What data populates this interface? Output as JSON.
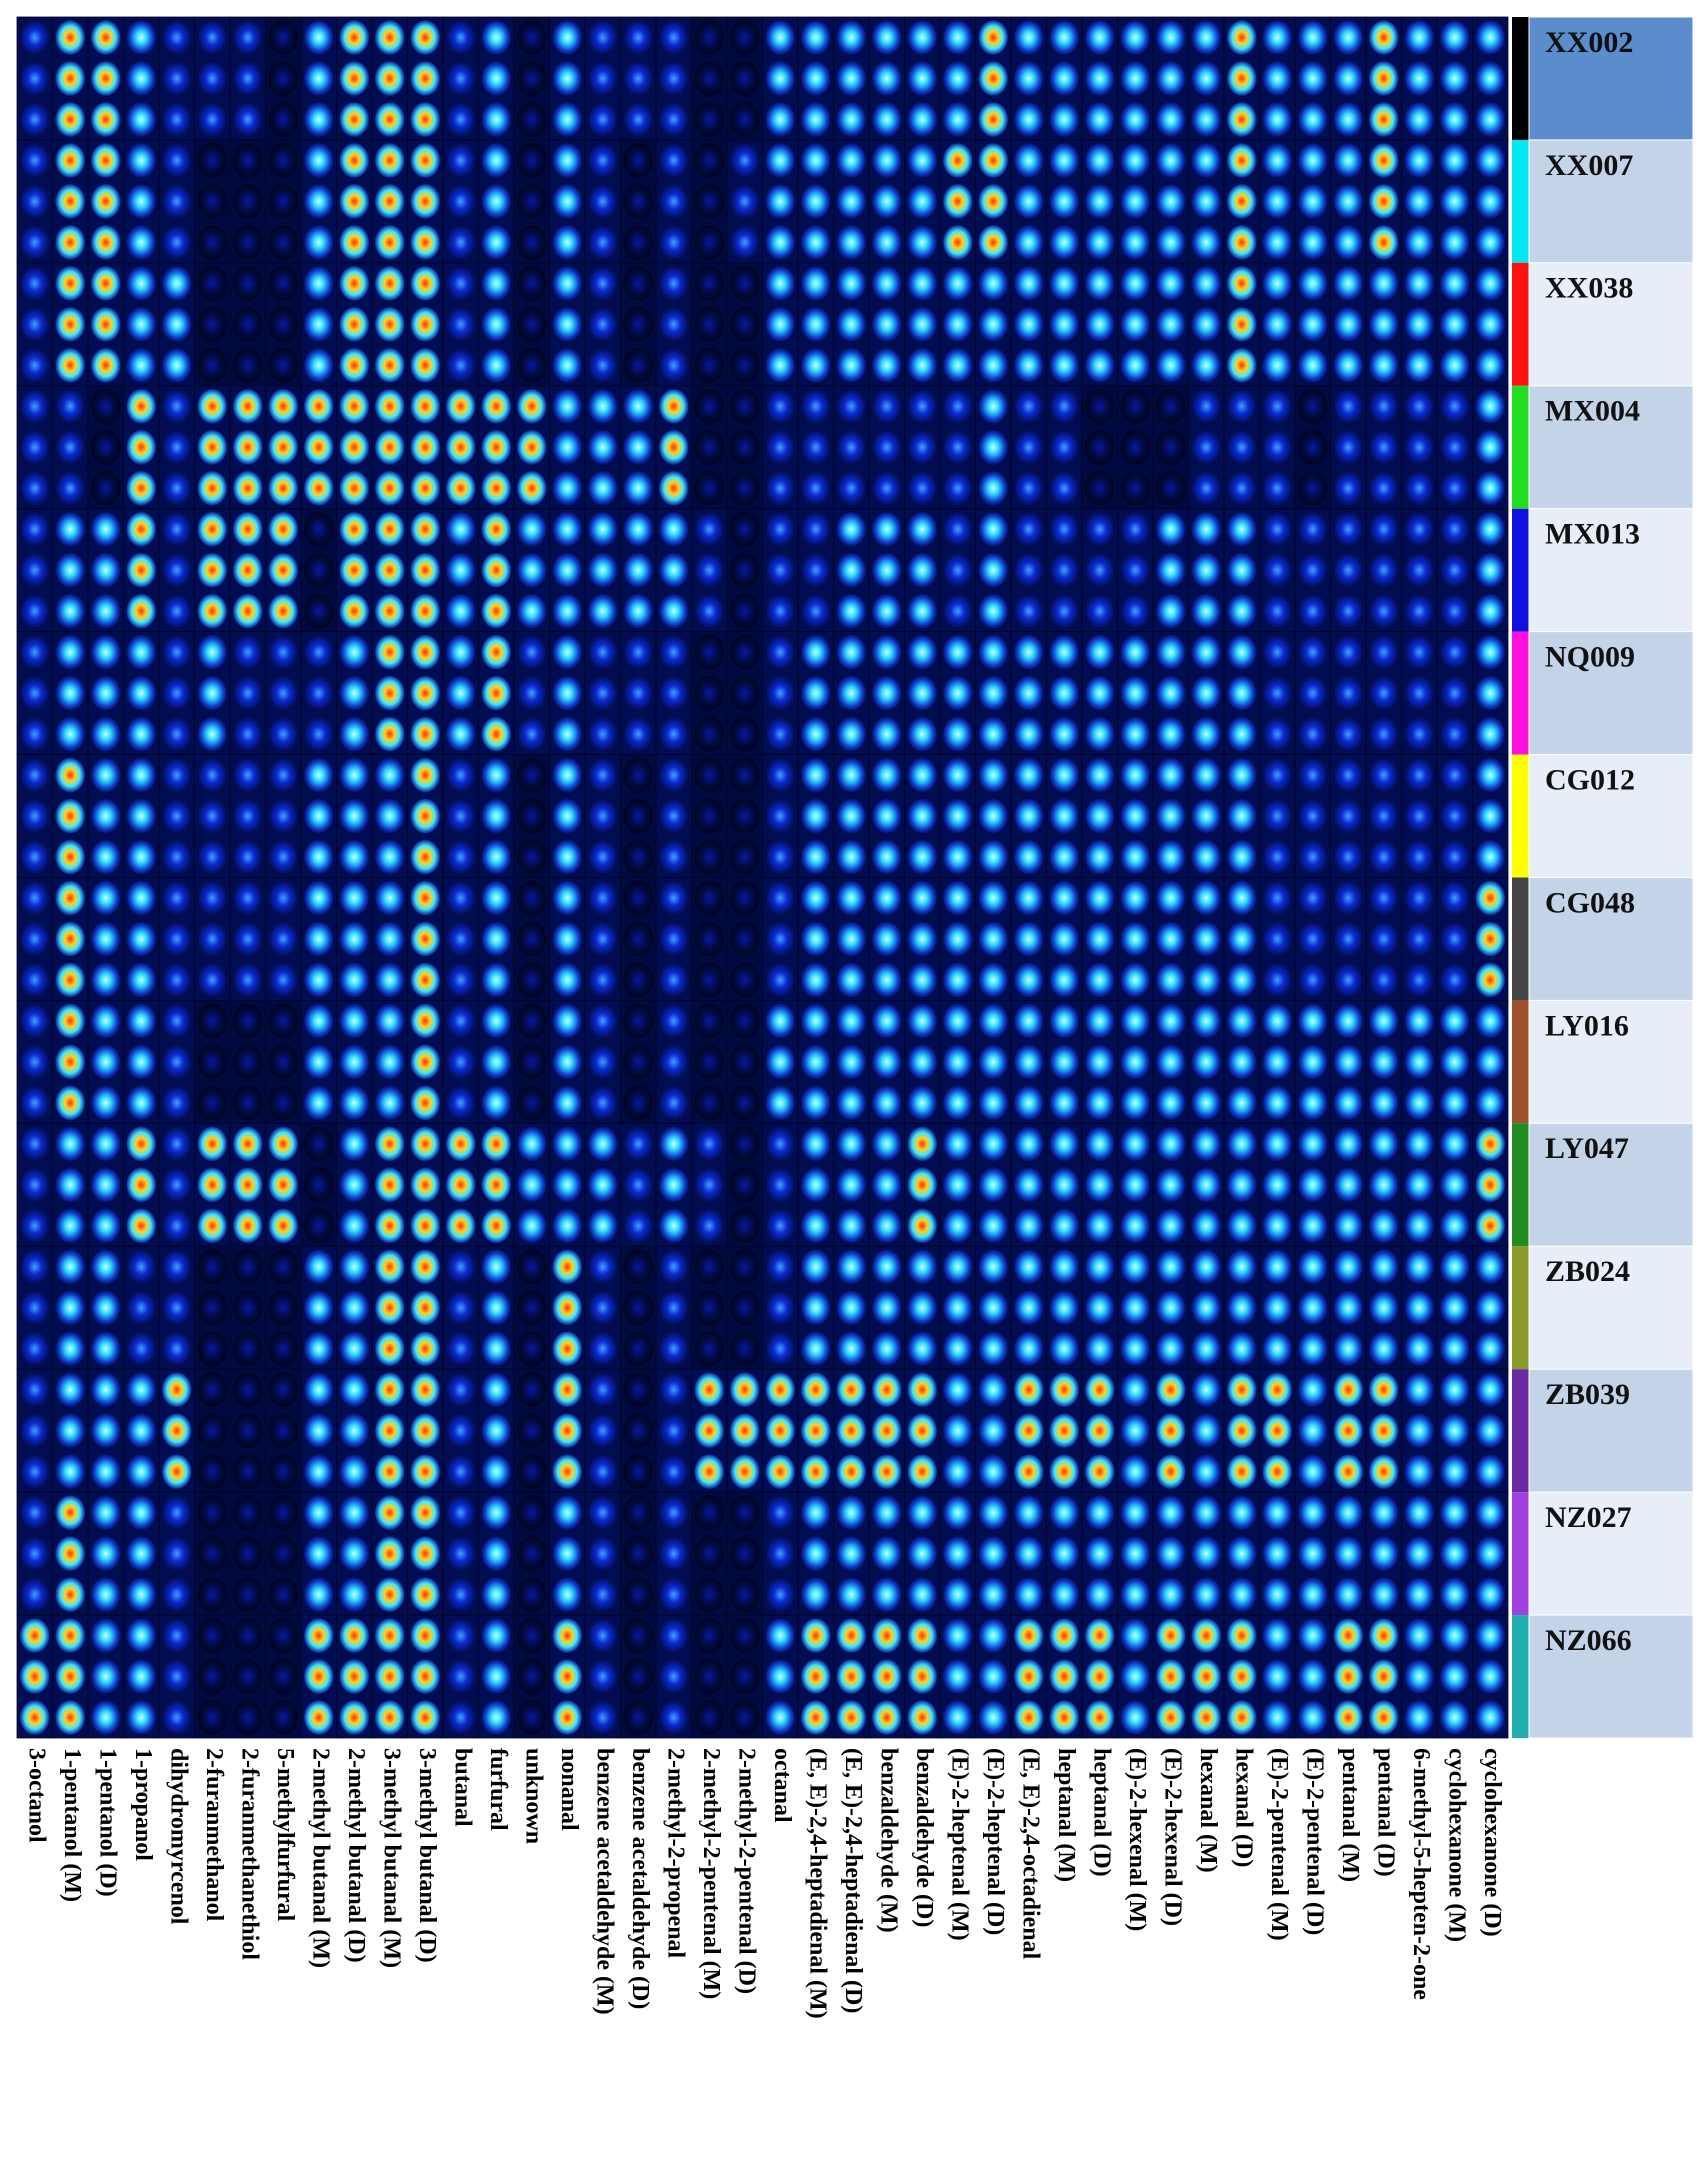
{
  "chart_data": {
    "type": "heatmap",
    "level_colors": [
      "#000a40",
      "#0a2ad0",
      "#30d8ff",
      "#ff3010"
    ],
    "categories": [
      "3-octanol",
      "1-pentanol (M)",
      "1-pentanol (D)",
      "1-propanol",
      "dihydromyrcenol",
      "2-furanmethanol",
      "2-furanmethanethiol",
      "5-methylfurfural",
      "2-methyl butanal (M)",
      "2-methyl butanal (D)",
      "3-methyl butanal (M)",
      "3-methyl butanal (D)",
      "butanal",
      "furfural",
      "unknown",
      "nonanal",
      "benzene acetaldehyde (M)",
      "benzene acetaldehyde (D)",
      "2-methyl-2-propenal",
      "2-methyl-2-pentenal (M)",
      "2-methyl-2-pentenal (D)",
      "octanal",
      "(E, E)-2,4-heptadienal (M)",
      "(E, E)-2,4-heptadienal (D)",
      "benzaldehyde (M)",
      "benzaldehyde (D)",
      "(E)-2-heptenal (M)",
      "(E)-2-heptenal (D)",
      "(E, E)-2,4-octadienal",
      "heptanal (M)",
      "heptanal (D)",
      "(E)-2-hexenal (M)",
      "(E)-2-hexenal (D)",
      "hexanal (M)",
      "hexanal (D)",
      "(E)-2-pentenal (M)",
      "(E)-2-pentenal (D)",
      "pentanal (M)",
      "pentanal (D)",
      "6-methyl-5-hepten-2-one",
      "cyclohexanone (M)",
      "cyclohexanone (D)"
    ],
    "series": [
      {
        "name": "XX002",
        "color": "#000000",
        "background": "#5b8ccc",
        "values": [
          1,
          3,
          3,
          2,
          1,
          1,
          1,
          0,
          2,
          3,
          3,
          3,
          1,
          2,
          0,
          2,
          1,
          1,
          1,
          0,
          0,
          2,
          2,
          2,
          2,
          2,
          2,
          3,
          2,
          2,
          2,
          2,
          2,
          2,
          3,
          2,
          2,
          2,
          3,
          2,
          2,
          2
        ]
      },
      {
        "name": "XX007",
        "color": "#00e8f0",
        "background": "#c5d3e8",
        "values": [
          1,
          3,
          3,
          2,
          1,
          0,
          0,
          0,
          2,
          3,
          3,
          3,
          1,
          2,
          0,
          2,
          1,
          0,
          1,
          0,
          1,
          2,
          2,
          2,
          2,
          2,
          3,
          3,
          2,
          2,
          2,
          2,
          2,
          2,
          3,
          2,
          2,
          2,
          3,
          2,
          2,
          2
        ]
      },
      {
        "name": "XX038",
        "color": "#ff1010",
        "background": "#e8eef7",
        "values": [
          1,
          3,
          3,
          2,
          2,
          0,
          0,
          0,
          2,
          3,
          3,
          3,
          1,
          2,
          0,
          2,
          1,
          0,
          1,
          0,
          0,
          2,
          2,
          2,
          2,
          2,
          2,
          2,
          2,
          2,
          2,
          2,
          2,
          2,
          3,
          2,
          2,
          2,
          2,
          2,
          2,
          2
        ]
      },
      {
        "name": "MX004",
        "color": "#22dd22",
        "background": "#c5d3e8",
        "values": [
          1,
          1,
          0,
          3,
          1,
          3,
          3,
          3,
          3,
          3,
          3,
          3,
          3,
          3,
          3,
          2,
          2,
          2,
          3,
          0,
          0,
          1,
          1,
          1,
          1,
          1,
          1,
          2,
          1,
          1,
          0,
          0,
          0,
          1,
          1,
          1,
          0,
          1,
          1,
          1,
          1,
          2
        ]
      },
      {
        "name": "MX013",
        "color": "#1010e0",
        "background": "#e8eef7",
        "values": [
          1,
          2,
          2,
          3,
          1,
          3,
          3,
          3,
          0,
          3,
          3,
          3,
          2,
          3,
          2,
          2,
          2,
          2,
          2,
          1,
          0,
          1,
          1,
          2,
          2,
          2,
          1,
          2,
          1,
          1,
          1,
          1,
          2,
          2,
          2,
          1,
          1,
          1,
          1,
          1,
          1,
          2
        ]
      },
      {
        "name": "NQ009",
        "color": "#ff10e0",
        "background": "#c5d3e8",
        "values": [
          1,
          2,
          2,
          2,
          1,
          2,
          1,
          1,
          1,
          2,
          3,
          3,
          2,
          3,
          1,
          2,
          1,
          1,
          1,
          0,
          0,
          1,
          2,
          2,
          2,
          2,
          2,
          2,
          2,
          2,
          2,
          2,
          2,
          2,
          2,
          1,
          1,
          1,
          1,
          1,
          1,
          2
        ]
      },
      {
        "name": "CG012",
        "color": "#ffff00",
        "background": "#e8eef7",
        "values": [
          1,
          3,
          2,
          2,
          1,
          1,
          1,
          1,
          2,
          2,
          2,
          3,
          1,
          2,
          0,
          2,
          1,
          0,
          1,
          0,
          0,
          1,
          2,
          2,
          2,
          2,
          2,
          2,
          2,
          2,
          2,
          2,
          2,
          2,
          2,
          1,
          1,
          1,
          1,
          1,
          1,
          2
        ]
      },
      {
        "name": "CG048",
        "color": "#444444",
        "background": "#c5d3e8",
        "values": [
          1,
          3,
          2,
          2,
          1,
          1,
          1,
          1,
          2,
          2,
          2,
          3,
          1,
          2,
          0,
          2,
          1,
          0,
          1,
          0,
          0,
          1,
          2,
          2,
          2,
          2,
          2,
          2,
          2,
          2,
          2,
          2,
          2,
          2,
          2,
          1,
          1,
          1,
          1,
          1,
          1,
          3
        ]
      },
      {
        "name": "LY016",
        "color": "#a0522d",
        "background": "#e8eef7",
        "values": [
          1,
          3,
          2,
          2,
          1,
          0,
          0,
          0,
          2,
          2,
          2,
          3,
          1,
          2,
          0,
          2,
          1,
          0,
          1,
          0,
          0,
          2,
          2,
          2,
          2,
          2,
          2,
          2,
          2,
          2,
          2,
          2,
          2,
          2,
          2,
          2,
          2,
          2,
          2,
          2,
          2,
          2
        ]
      },
      {
        "name": "LY047",
        "color": "#228b22",
        "background": "#c5d3e8",
        "values": [
          1,
          2,
          2,
          3,
          1,
          3,
          3,
          3,
          0,
          2,
          3,
          3,
          3,
          3,
          2,
          2,
          2,
          1,
          2,
          1,
          0,
          1,
          2,
          2,
          2,
          3,
          2,
          2,
          2,
          2,
          2,
          2,
          2,
          2,
          2,
          2,
          2,
          2,
          2,
          2,
          2,
          3
        ]
      },
      {
        "name": "ZB024",
        "color": "#8a9a2a",
        "background": "#e8eef7",
        "values": [
          1,
          2,
          2,
          1,
          1,
          0,
          0,
          0,
          2,
          2,
          3,
          3,
          1,
          2,
          0,
          3,
          1,
          0,
          1,
          0,
          0,
          1,
          2,
          2,
          2,
          2,
          2,
          2,
          2,
          2,
          2,
          2,
          2,
          2,
          2,
          2,
          2,
          2,
          2,
          2,
          2,
          2
        ]
      },
      {
        "name": "ZB039",
        "color": "#6a2aa0",
        "background": "#c5d3e8",
        "values": [
          1,
          2,
          2,
          2,
          3,
          0,
          0,
          0,
          2,
          2,
          3,
          3,
          1,
          2,
          0,
          3,
          1,
          0,
          1,
          3,
          3,
          3,
          3,
          3,
          3,
          3,
          2,
          2,
          3,
          3,
          3,
          2,
          3,
          2,
          3,
          3,
          2,
          3,
          3,
          2,
          2,
          2
        ]
      },
      {
        "name": "NZ027",
        "color": "#a040e0",
        "background": "#e8eef7",
        "values": [
          1,
          3,
          2,
          2,
          1,
          0,
          0,
          0,
          2,
          2,
          3,
          3,
          1,
          2,
          0,
          2,
          1,
          0,
          1,
          0,
          0,
          1,
          2,
          2,
          2,
          2,
          2,
          2,
          2,
          2,
          2,
          2,
          2,
          2,
          2,
          2,
          2,
          2,
          2,
          2,
          2,
          2
        ]
      },
      {
        "name": "NZ066",
        "color": "#20b0b0",
        "background": "#c5d3e8",
        "values": [
          3,
          3,
          2,
          2,
          1,
          0,
          0,
          0,
          3,
          3,
          3,
          3,
          1,
          2,
          0,
          3,
          1,
          0,
          1,
          0,
          0,
          2,
          3,
          3,
          3,
          3,
          2,
          2,
          3,
          3,
          3,
          2,
          3,
          3,
          3,
          2,
          2,
          3,
          3,
          2,
          2,
          2
        ]
      }
    ]
  }
}
